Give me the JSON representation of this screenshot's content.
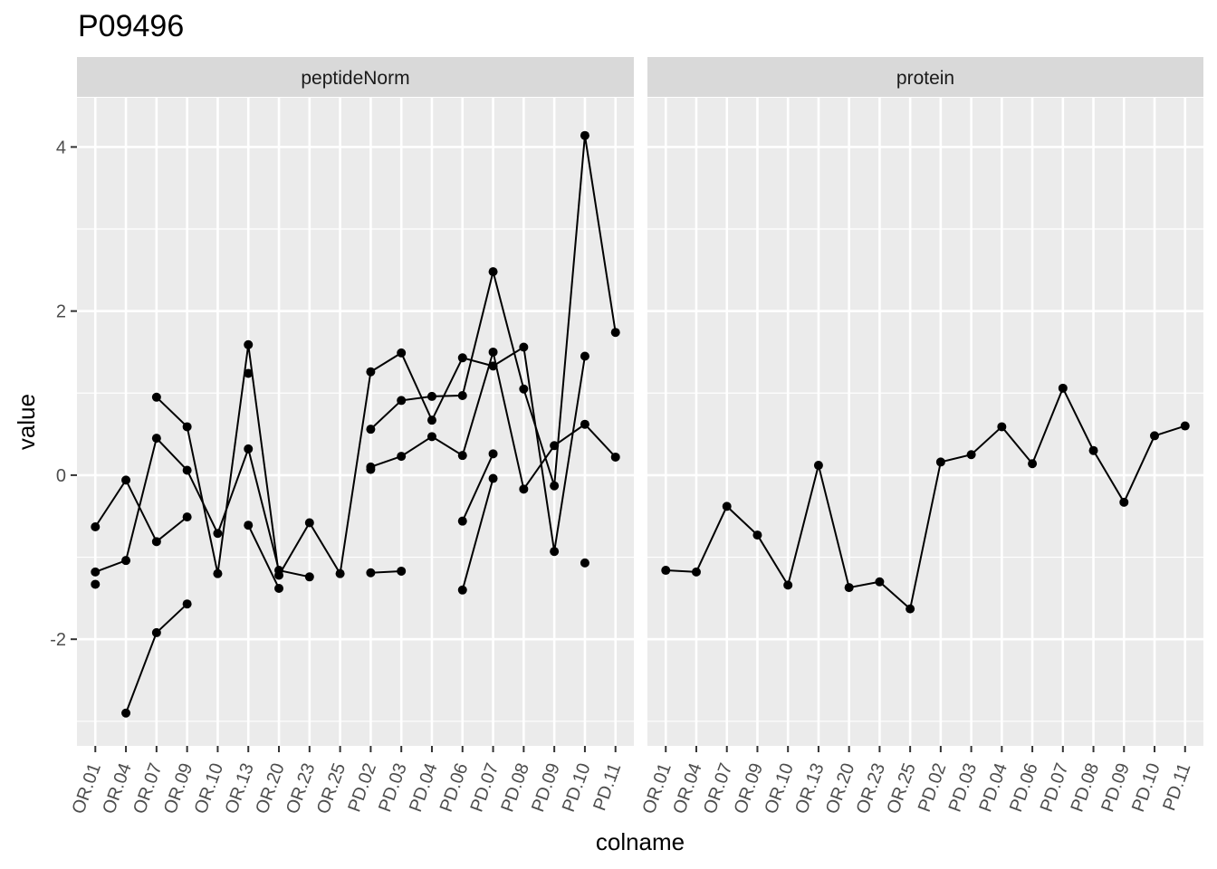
{
  "chart_data": {
    "type": "line",
    "title": "P09496",
    "xlabel": "colname",
    "ylabel": "value",
    "categories": [
      "OR.01",
      "OR.04",
      "OR.07",
      "OR.09",
      "OR.10",
      "OR.13",
      "OR.20",
      "OR.23",
      "OR.25",
      "PD.02",
      "PD.03",
      "PD.04",
      "PD.06",
      "PD.07",
      "PD.08",
      "PD.09",
      "PD.10",
      "PD.11"
    ],
    "ylim": [
      -3.3,
      4.6
    ],
    "y_ticks": [
      -2,
      0,
      2,
      4
    ],
    "grid": true,
    "legend": "none",
    "panels": [
      {
        "name": "peptideNorm",
        "series": [
          {
            "values": [
              -0.63,
              -0.06,
              -0.81,
              -0.51,
              null,
              -0.61,
              -1.38,
              null,
              null,
              0.56,
              0.91,
              0.96,
              0.97,
              2.48,
              1.05,
              -0.13,
              4.14,
              1.74
            ]
          },
          {
            "values": [
              -1.18,
              -1.04,
              0.45,
              0.06,
              -0.71,
              0.32,
              -1.16,
              -1.24,
              null,
              0.1,
              0.23,
              0.47,
              0.24,
              1.5,
              -0.17,
              0.36,
              0.62,
              0.22
            ]
          },
          {
            "values": [
              -1.33,
              null,
              0.95,
              0.59,
              -1.2,
              1.59,
              -1.22,
              -0.58,
              -1.2,
              1.26,
              1.49,
              0.67,
              1.43,
              1.33,
              1.56,
              -0.93,
              1.45,
              null
            ]
          },
          {
            "values": [
              null,
              -2.9,
              -1.92,
              -1.57,
              null,
              1.24,
              null,
              null,
              null,
              -1.19,
              -1.17,
              null,
              -1.4,
              -0.04,
              null,
              null,
              -1.07,
              null
            ]
          },
          {
            "values": [
              null,
              null,
              null,
              null,
              null,
              null,
              null,
              null,
              null,
              0.07,
              null,
              null,
              -0.56,
              0.26,
              null,
              null,
              null,
              null
            ]
          }
        ]
      },
      {
        "name": "protein",
        "series": [
          {
            "values": [
              -1.16,
              -1.18,
              -0.38,
              -0.73,
              -1.34,
              0.12,
              -1.37,
              -1.3,
              -1.63,
              0.16,
              0.25,
              0.59,
              0.14,
              1.06,
              0.3,
              -0.33,
              0.48,
              0.6
            ]
          }
        ]
      }
    ]
  }
}
